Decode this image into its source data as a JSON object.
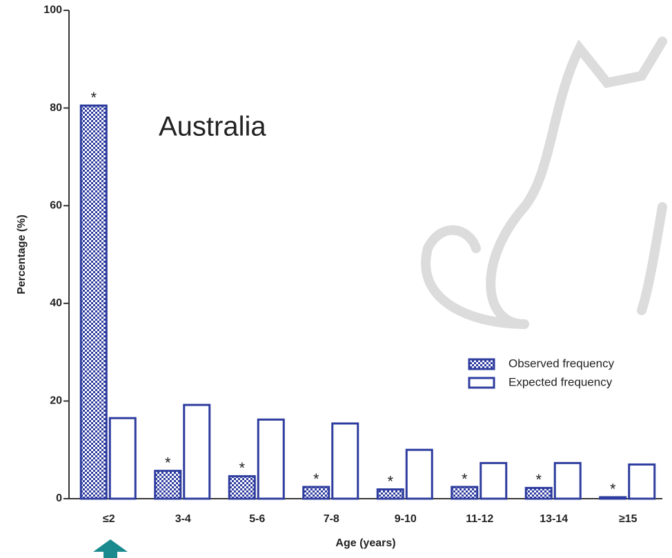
{
  "chart_data": {
    "type": "bar",
    "title": "Australia",
    "x_label": "Age (years)",
    "y_label": "Percentage (%)",
    "categories": [
      "≤2",
      "3-4",
      "5-6",
      "7-8",
      "9-10",
      "11-12",
      "13-14",
      "≥15"
    ],
    "series": [
      {
        "name": "Observed frequency",
        "color": "#2d3c9e",
        "fill": "checkerboard",
        "values": [
          80.5,
          5.7,
          4.6,
          2.4,
          1.9,
          2.4,
          2.2,
          0.3
        ],
        "annotations": [
          "*",
          "*",
          "*",
          "*",
          "*",
          "*",
          "*",
          "*"
        ]
      },
      {
        "name": "Expected frequency",
        "color": "#2d3c9e",
        "fill": "outline",
        "values": [
          16.5,
          19.2,
          16.2,
          15.4,
          10.0,
          7.3,
          7.3,
          7.0
        ]
      }
    ],
    "ylim": [
      0,
      100
    ],
    "yticks": [
      0,
      20,
      40,
      60,
      80,
      100
    ],
    "grid": false,
    "legend": "lower right"
  }
}
